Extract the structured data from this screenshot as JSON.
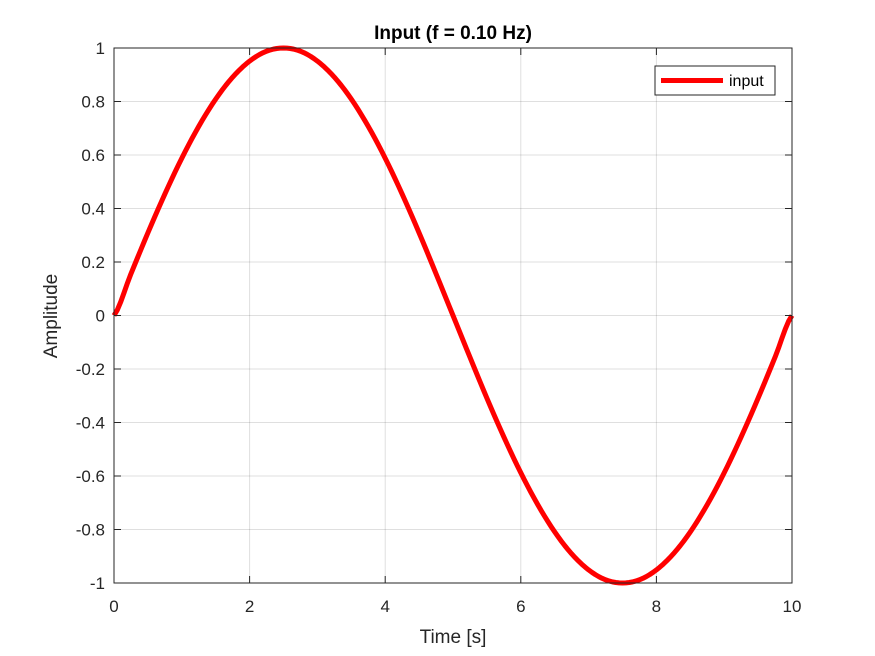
{
  "chart_data": {
    "type": "line",
    "title": "Input (f = 0.10 Hz)",
    "xlabel": "Time [s]",
    "ylabel": "Amplitude",
    "xlim": [
      0,
      10
    ],
    "ylim": [
      -1,
      1
    ],
    "xticks": [
      0,
      2,
      4,
      6,
      8,
      10
    ],
    "xtick_labels": [
      "0",
      "2",
      "4",
      "6",
      "8",
      "10"
    ],
    "yticks": [
      -1,
      -0.8,
      -0.6,
      -0.4,
      -0.2,
      0,
      0.2,
      0.4,
      0.6,
      0.8,
      1
    ],
    "ytick_labels": [
      "-1",
      "-0.8",
      "-0.6",
      "-0.4",
      "-0.2",
      "0",
      "0.2",
      "0.4",
      "0.6",
      "0.8",
      "1"
    ],
    "grid": true,
    "legend_position": "top-right",
    "series": [
      {
        "name": "input",
        "color": "#ff0000",
        "x": [
          0,
          0.25,
          0.5,
          0.75,
          1,
          1.25,
          1.5,
          1.75,
          2,
          2.25,
          2.5,
          2.75,
          3,
          3.25,
          3.5,
          3.75,
          4,
          4.25,
          4.5,
          4.75,
          5,
          5.25,
          5.5,
          5.75,
          6,
          6.25,
          6.5,
          6.75,
          7,
          7.25,
          7.5,
          7.75,
          8,
          8.25,
          8.5,
          8.75,
          9,
          9.25,
          9.5,
          9.75,
          10
        ],
        "y": [
          0,
          0.156,
          0.309,
          0.454,
          0.588,
          0.707,
          0.809,
          0.891,
          0.951,
          0.988,
          1,
          0.988,
          0.951,
          0.891,
          0.809,
          0.707,
          0.588,
          0.454,
          0.309,
          0.156,
          0,
          -0.156,
          -0.309,
          -0.454,
          -0.588,
          -0.707,
          -0.809,
          -0.891,
          -0.951,
          -0.988,
          -1,
          -0.988,
          -0.951,
          -0.891,
          -0.809,
          -0.707,
          -0.588,
          -0.454,
          -0.309,
          -0.156,
          0
        ]
      }
    ]
  }
}
